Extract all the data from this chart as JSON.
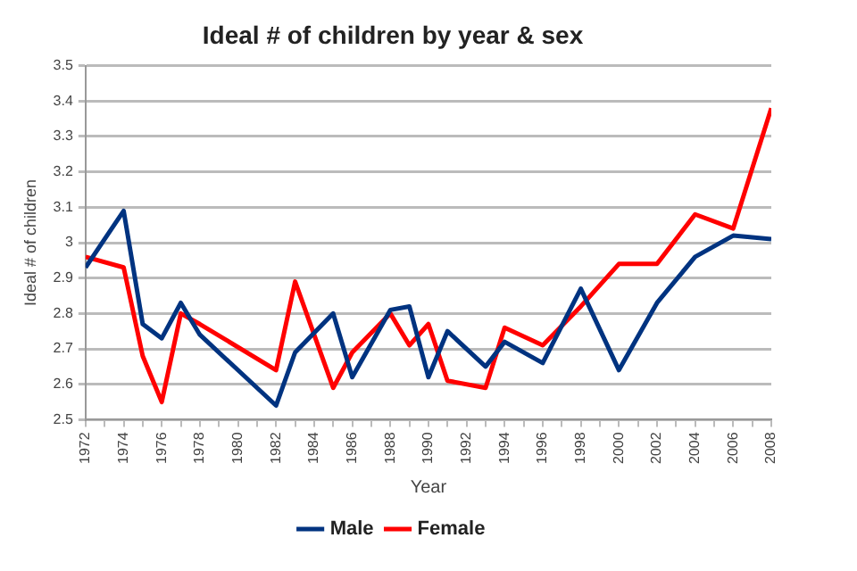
{
  "chart_data": {
    "type": "line",
    "title": "Ideal # of children by year & sex",
    "xlabel": "Year",
    "ylabel": "Ideal # of children",
    "x": [
      1972,
      1974,
      1975,
      1976,
      1977,
      1978,
      1982,
      1983,
      1985,
      1986,
      1988,
      1989,
      1990,
      1991,
      1993,
      1994,
      1996,
      1998,
      2000,
      2002,
      2004,
      2006,
      2008
    ],
    "series": [
      {
        "name": "Male",
        "color": "#003380",
        "values": [
          2.93,
          3.09,
          2.77,
          2.73,
          2.83,
          2.74,
          2.54,
          2.69,
          2.8,
          2.62,
          2.81,
          2.82,
          2.62,
          2.75,
          2.65,
          2.72,
          2.66,
          2.87,
          2.64,
          2.83,
          2.96,
          3.02,
          3.01
        ]
      },
      {
        "name": "Female",
        "color": "#ff0000",
        "values": [
          2.96,
          2.93,
          2.68,
          2.55,
          2.8,
          2.77,
          2.64,
          2.89,
          2.59,
          2.69,
          2.8,
          2.71,
          2.77,
          2.61,
          2.59,
          2.76,
          2.71,
          2.82,
          2.94,
          2.94,
          3.08,
          3.04,
          3.38
        ]
      }
    ],
    "xlim": [
      1972,
      2008
    ],
    "xticks": [
      1972,
      {
        "value": 1973,
        "label": null
      },
      1974,
      {
        "value": 1975,
        "label": null
      },
      1976,
      {
        "value": 1977,
        "label": null
      },
      1978,
      {
        "value": 1979,
        "label": null
      },
      1980,
      {
        "value": 1981,
        "label": null
      },
      1982,
      {
        "value": 1983,
        "label": null
      },
      1984,
      {
        "value": 1985,
        "label": null
      },
      1986,
      {
        "value": 1987,
        "label": null
      },
      1988,
      {
        "value": 1989,
        "label": null
      },
      1990,
      {
        "value": 1991,
        "label": null
      },
      1992,
      {
        "value": 1993,
        "label": null
      },
      1994,
      {
        "value": 1995,
        "label": null
      },
      1996,
      {
        "value": 1997,
        "label": null
      },
      1998,
      {
        "value": 1999,
        "label": null
      },
      2000,
      {
        "value": 2001,
        "label": null
      },
      2002,
      {
        "value": 2003,
        "label": null
      },
      2004,
      {
        "value": 2005,
        "label": null
      },
      2006,
      {
        "value": 2007,
        "label": null
      },
      2008
    ],
    "ylim": [
      2.5,
      3.5
    ],
    "yticks": [
      2.5,
      2.6,
      2.7,
      2.8,
      2.9,
      3,
      3.1,
      3.2,
      3.3,
      3.4,
      3.5
    ],
    "grid": "y",
    "legend": "bottom",
    "marker": "none",
    "line_style": "solid"
  }
}
